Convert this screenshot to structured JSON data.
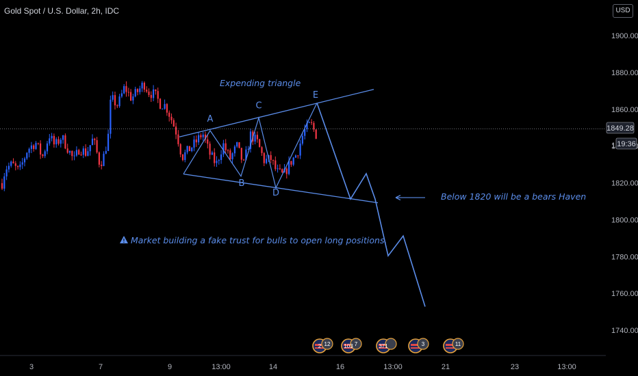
{
  "header": {
    "title": "Gold Spot / U.S. Dollar, 2h, IDC",
    "currency": "USD"
  },
  "price_axis": {
    "last_price": "1849.28",
    "countdown": "19:36",
    "partial_tick": "18"
  },
  "annotations": {
    "pattern": "Expending triangle",
    "bears": "Below 1820 will be a bears Haven",
    "warning": "Market building a fake trust for bulls to open long positions."
  },
  "events": [
    {
      "label": "2",
      "count": "12"
    },
    {
      "label": "103",
      "count": "7"
    },
    {
      "label": "371",
      "count": ""
    },
    {
      "label": "",
      "count": "3"
    },
    {
      "label": "",
      "count": "11"
    }
  ],
  "colors": {
    "up": "#2962ff",
    "down": "#f23645",
    "drawing": "#5b8dea",
    "background": "#000000"
  },
  "chart_data": {
    "type": "candlestick",
    "y_ticks": [
      1900,
      1880,
      1860,
      1840,
      1820,
      1800,
      1780,
      1760,
      1740
    ],
    "y_tick_labels": [
      "1900.00",
      "1880.00",
      "1860.00",
      "1840.00",
      "1820.00",
      "1800.00",
      "1780.00",
      "1760.00",
      "1740.00"
    ],
    "ylim": [
      1728,
      1918
    ],
    "x_tick_labels": [
      "3",
      "7",
      "9",
      "13:00",
      "14",
      "16",
      "13:00",
      "21",
      "23",
      "13:00"
    ],
    "last_price": 1849.28,
    "grid": false,
    "price_path": [
      [
        0,
        1815
      ],
      [
        8,
        1828
      ],
      [
        18,
        1830
      ],
      [
        28,
        1826
      ],
      [
        40,
        1838
      ],
      [
        52,
        1842
      ],
      [
        62,
        1834
      ],
      [
        72,
        1846
      ],
      [
        80,
        1840
      ],
      [
        90,
        1845
      ],
      [
        100,
        1838
      ],
      [
        108,
        1832
      ],
      [
        116,
        1839
      ],
      [
        126,
        1836
      ],
      [
        136,
        1844
      ],
      [
        146,
        1830
      ],
      [
        152,
        1835
      ],
      [
        158,
        1845
      ],
      [
        162,
        1866
      ],
      [
        172,
        1862
      ],
      [
        182,
        1872
      ],
      [
        192,
        1866
      ],
      [
        202,
        1870
      ],
      [
        210,
        1874
      ],
      [
        218,
        1869
      ],
      [
        226,
        1868
      ],
      [
        234,
        1863
      ],
      [
        242,
        1862
      ],
      [
        250,
        1855
      ],
      [
        258,
        1847
      ],
      [
        266,
        1834
      ],
      [
        276,
        1838
      ],
      [
        286,
        1842
      ],
      [
        296,
        1847
      ],
      [
        306,
        1836
      ],
      [
        316,
        1830
      ],
      [
        326,
        1841
      ],
      [
        336,
        1833
      ],
      [
        346,
        1840
      ],
      [
        356,
        1830
      ],
      [
        366,
        1846
      ],
      [
        376,
        1842
      ],
      [
        386,
        1832
      ],
      [
        396,
        1833
      ],
      [
        404,
        1826
      ],
      [
        414,
        1824
      ],
      [
        424,
        1831
      ],
      [
        434,
        1836
      ],
      [
        444,
        1848
      ],
      [
        454,
        1852
      ],
      [
        462,
        1846
      ]
    ],
    "drawings": {
      "upper_line": [
        [
          262,
          1845.0
        ],
        [
          546,
          1870.8
        ]
      ],
      "lower_line": [
        [
          268,
          1824.8
        ],
        [
          552,
          1809.2
        ]
      ],
      "wave": [
        [
          268,
          1824.8
        ],
        [
          307,
          1848.4
        ],
        [
          352,
          1823.6
        ],
        [
          378,
          1855.3
        ],
        [
          403,
          1817.3
        ],
        [
          463,
          1863.4
        ]
      ],
      "projection": [
        [
          463,
          1863.4
        ],
        [
          512,
          1811.2
        ],
        [
          535,
          1825.0
        ],
        [
          548,
          1811.2
        ],
        [
          567,
          1780.4
        ],
        [
          589,
          1791.2
        ],
        [
          621,
          1752.8
        ]
      ],
      "arrow": {
        "from": [
          621,
          1812.0
        ],
        "to": [
          578,
          1812.0
        ]
      },
      "points": [
        {
          "label": "A",
          "x": 307,
          "y": 1853.3
        },
        {
          "label": "B",
          "x": 353,
          "y": 1818.3
        },
        {
          "label": "C",
          "x": 378,
          "y": 1860.4
        },
        {
          "label": "D",
          "x": 403,
          "y": 1813.1
        },
        {
          "label": "E",
          "x": 461,
          "y": 1866.3
        }
      ]
    }
  }
}
